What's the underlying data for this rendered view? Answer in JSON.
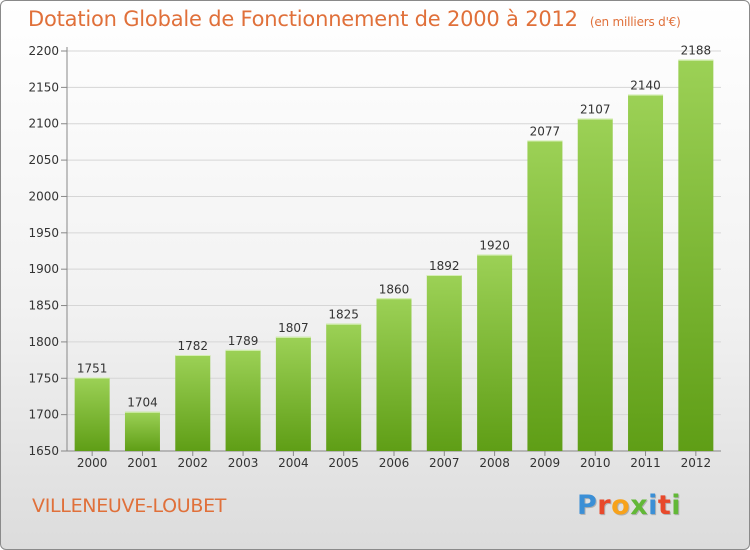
{
  "chart_data": {
    "type": "bar",
    "title": "Dotation Globale de Fonctionnement de 2000 à 2012",
    "subtitle": "(en milliers d'€)",
    "xlabel": "",
    "ylabel": "",
    "categories": [
      "2000",
      "2001",
      "2002",
      "2003",
      "2004",
      "2005",
      "2006",
      "2007",
      "2008",
      "2009",
      "2010",
      "2011",
      "2012"
    ],
    "values": [
      1751,
      1704,
      1782,
      1789,
      1807,
      1825,
      1860,
      1892,
      1920,
      2077,
      2107,
      2140,
      2188
    ],
    "ylim": [
      1650,
      2200
    ],
    "yticks": [
      1650,
      1700,
      1750,
      1800,
      1850,
      1900,
      1950,
      2000,
      2050,
      2100,
      2150,
      2200
    ],
    "grid": true,
    "bar_color_top": "#9cd156",
    "bar_color_bottom": "#5f9e16"
  },
  "footer": {
    "commune": "VILLENEUVE-LOUBET",
    "logo": "Proxiti",
    "logo_colors": [
      "#3b8fd6",
      "#e8492b",
      "#f7a21b",
      "#62b837",
      "#3b8fd6",
      "#e8492b",
      "#62b837"
    ]
  }
}
